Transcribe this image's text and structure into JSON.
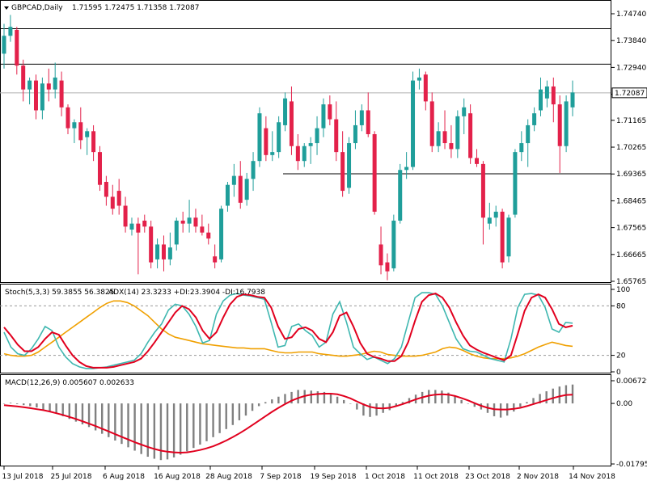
{
  "chart_data": [
    {
      "type": "candlestick",
      "symbol": "GBPCAD",
      "timeframe": "Daily",
      "header": {
        "symbol_label": "GBPCAD,Daily",
        "ohlc": "1.71595 1.72475 1.71358 1.72087"
      },
      "y_ticks": [
        "1.74740",
        "1.73840",
        "1.72940",
        "1.72040",
        "1.71165",
        "1.70265",
        "1.69365",
        "1.68465",
        "1.67565",
        "1.66665",
        "1.65765"
      ],
      "ylim": [
        1.65765,
        1.7474
      ],
      "current_price": "1.72087",
      "horizontal_lines": [
        1.7424,
        1.7305,
        1.6937
      ],
      "x_ticks": [
        "13 Jul 2018",
        "25 Jul 2018",
        "6 Aug 2018",
        "16 Aug 2018",
        "28 Aug 2018",
        "7 Sep 2018",
        "19 Sep 2018",
        "1 Oct 2018",
        "11 Oct 2018",
        "23 Oct 2018",
        "2 Nov 2018",
        "14 Nov 2018"
      ],
      "candles": [
        [
          1.734,
          1.744,
          1.729,
          1.74
        ],
        [
          1.74,
          1.747,
          1.738,
          1.743
        ],
        [
          1.742,
          1.743,
          1.727,
          1.73
        ],
        [
          1.73,
          1.732,
          1.718,
          1.722
        ],
        [
          1.722,
          1.726,
          1.717,
          1.725
        ],
        [
          1.725,
          1.727,
          1.712,
          1.715
        ],
        [
          1.715,
          1.726,
          1.712,
          1.724
        ],
        [
          1.724,
          1.729,
          1.718,
          1.722
        ],
        [
          1.722,
          1.731,
          1.719,
          1.726
        ],
        [
          1.725,
          1.728,
          1.713,
          1.716
        ],
        [
          1.716,
          1.717,
          1.707,
          1.709
        ],
        [
          1.709,
          1.712,
          1.704,
          1.711
        ],
        [
          1.711,
          1.716,
          1.702,
          1.705
        ],
        [
          1.706,
          1.709,
          1.7,
          1.708
        ],
        [
          1.708,
          1.71,
          1.698,
          1.701
        ],
        [
          1.701,
          1.703,
          1.688,
          1.69
        ],
        [
          1.691,
          1.693,
          1.683,
          1.686
        ],
        [
          1.686,
          1.69,
          1.68,
          1.682
        ],
        [
          1.688,
          1.692,
          1.68,
          1.683
        ],
        [
          1.683,
          1.686,
          1.674,
          1.676
        ],
        [
          1.675,
          1.679,
          1.673,
          1.677
        ],
        [
          1.677,
          1.679,
          1.66,
          1.674
        ],
        [
          1.678,
          1.68,
          1.674,
          1.676
        ],
        [
          1.676,
          1.678,
          1.662,
          1.664
        ],
        [
          1.665,
          1.672,
          1.662,
          1.67
        ],
        [
          1.67,
          1.673,
          1.661,
          1.665
        ],
        [
          1.665,
          1.674,
          1.663,
          1.669
        ],
        [
          1.67,
          1.679,
          1.668,
          1.678
        ],
        [
          1.678,
          1.681,
          1.674,
          1.677
        ],
        [
          1.677,
          1.685,
          1.674,
          1.679
        ],
        [
          1.679,
          1.682,
          1.674,
          1.676
        ],
        [
          1.676,
          1.68,
          1.673,
          1.674
        ],
        [
          1.674,
          1.677,
          1.67,
          1.672
        ],
        [
          1.666,
          1.67,
          1.662,
          1.664
        ],
        [
          1.665,
          1.683,
          1.664,
          1.682
        ],
        [
          1.683,
          1.691,
          1.681,
          1.69
        ],
        [
          1.69,
          1.697,
          1.686,
          1.693
        ],
        [
          1.693,
          1.698,
          1.682,
          1.684
        ],
        [
          1.685,
          1.694,
          1.683,
          1.692
        ],
        [
          1.692,
          1.701,
          1.688,
          1.698
        ],
        [
          1.698,
          1.716,
          1.696,
          1.714
        ],
        [
          1.709,
          1.713,
          1.698,
          1.7
        ],
        [
          1.7,
          1.708,
          1.698,
          1.701
        ],
        [
          1.701,
          1.713,
          1.699,
          1.711
        ],
        [
          1.71,
          1.721,
          1.708,
          1.719
        ],
        [
          1.718,
          1.723,
          1.7,
          1.703
        ],
        [
          1.703,
          1.707,
          1.695,
          1.698
        ],
        [
          1.698,
          1.704,
          1.696,
          1.703
        ],
        [
          1.703,
          1.706,
          1.697,
          1.704
        ],
        [
          1.704,
          1.713,
          1.7,
          1.709
        ],
        [
          1.709,
          1.719,
          1.706,
          1.717
        ],
        [
          1.717,
          1.72,
          1.71,
          1.712
        ],
        [
          1.712,
          1.718,
          1.698,
          1.701
        ],
        [
          1.701,
          1.708,
          1.686,
          1.688
        ],
        [
          1.689,
          1.706,
          1.687,
          1.704
        ],
        [
          1.704,
          1.715,
          1.702,
          1.71
        ],
        [
          1.71,
          1.717,
          1.708,
          1.715
        ],
        [
          1.715,
          1.721,
          1.706,
          1.707
        ],
        [
          1.707,
          1.708,
          1.68,
          1.681
        ],
        [
          1.67,
          1.676,
          1.66,
          1.663
        ],
        [
          1.664,
          1.667,
          1.658,
          1.661
        ],
        [
          1.662,
          1.68,
          1.661,
          1.678
        ],
        [
          1.678,
          1.697,
          1.677,
          1.695
        ],
        [
          1.695,
          1.701,
          1.692,
          1.696
        ],
        [
          1.696,
          1.728,
          1.695,
          1.725
        ],
        [
          1.725,
          1.729,
          1.722,
          1.726
        ],
        [
          1.727,
          1.728,
          1.715,
          1.718
        ],
        [
          1.718,
          1.721,
          1.701,
          1.703
        ],
        [
          1.703,
          1.711,
          1.701,
          1.708
        ],
        [
          1.708,
          1.715,
          1.702,
          1.704
        ],
        [
          1.704,
          1.71,
          1.699,
          1.702
        ],
        [
          1.702,
          1.715,
          1.699,
          1.713
        ],
        [
          1.713,
          1.719,
          1.707,
          1.716
        ],
        [
          1.714,
          1.717,
          1.697,
          1.699
        ],
        [
          1.699,
          1.702,
          1.696,
          1.697
        ],
        [
          1.697,
          1.698,
          1.67,
          1.679
        ],
        [
          1.677,
          1.684,
          1.675,
          1.679
        ],
        [
          1.679,
          1.683,
          1.676,
          1.681
        ],
        [
          1.681,
          1.682,
          1.662,
          1.664
        ],
        [
          1.666,
          1.68,
          1.664,
          1.679
        ],
        [
          1.68,
          1.702,
          1.679,
          1.701
        ],
        [
          1.701,
          1.708,
          1.698,
          1.704
        ],
        [
          1.704,
          1.712,
          1.696,
          1.71
        ],
        [
          1.71,
          1.716,
          1.708,
          1.714
        ],
        [
          1.715,
          1.726,
          1.713,
          1.722
        ],
        [
          1.719,
          1.725,
          1.716,
          1.723
        ],
        [
          1.723,
          1.726,
          1.711,
          1.717
        ],
        [
          1.717,
          1.72,
          1.694,
          1.703
        ],
        [
          1.703,
          1.72,
          1.701,
          1.718
        ],
        [
          1.716,
          1.725,
          1.713,
          1.721
        ]
      ]
    },
    {
      "type": "line",
      "indicator": "Stochastic",
      "header": "Stoch(5,3,3) 59.3855 56.3825",
      "adx_header": "ADX(14) 23.3233 +DI:23.3904 -DI:16.7938",
      "y_ticks": [
        "100",
        "80",
        "20",
        "0"
      ],
      "ylim": [
        0,
        100
      ],
      "levels": [
        80,
        20
      ],
      "series": [
        {
          "name": "Main",
          "color": "#3fb7b0",
          "values": [
            48,
            30,
            22,
            20,
            28,
            40,
            55,
            50,
            30,
            18,
            10,
            6,
            4,
            4,
            5,
            6,
            8,
            10,
            12,
            14,
            22,
            36,
            48,
            58,
            75,
            82,
            80,
            70,
            55,
            35,
            38,
            70,
            86,
            93,
            95,
            93,
            92,
            90,
            88,
            60,
            30,
            32,
            55,
            58,
            50,
            44,
            30,
            36,
            70,
            85,
            60,
            30,
            22,
            15,
            18,
            14,
            10,
            16,
            30,
            60,
            90,
            96,
            96,
            94,
            80,
            60,
            40,
            28,
            25,
            24,
            20,
            16,
            14,
            12,
            40,
            78,
            94,
            95,
            93,
            78,
            52,
            48,
            60,
            59
          ]
        },
        {
          "name": "Signal",
          "color": "#e1001e",
          "values": [
            54,
            44,
            33,
            25,
            25,
            30,
            40,
            48,
            45,
            32,
            20,
            12,
            7,
            5,
            5,
            5,
            6,
            8,
            10,
            12,
            16,
            25,
            36,
            48,
            60,
            72,
            80,
            76,
            66,
            50,
            40,
            48,
            66,
            82,
            91,
            94,
            93,
            91,
            90,
            78,
            55,
            40,
            42,
            52,
            54,
            50,
            40,
            36,
            48,
            68,
            72,
            55,
            35,
            22,
            18,
            16,
            13,
            13,
            19,
            36,
            62,
            85,
            93,
            95,
            90,
            78,
            60,
            44,
            32,
            27,
            23,
            20,
            17,
            14,
            20,
            46,
            74,
            90,
            94,
            90,
            76,
            58,
            54,
            56
          ]
        },
        {
          "name": "ADX",
          "color": "#f0a000",
          "values": [
            22,
            20,
            19,
            19,
            20,
            24,
            30,
            36,
            42,
            48,
            54,
            60,
            66,
            72,
            78,
            83,
            86,
            86,
            84,
            80,
            74,
            68,
            60,
            52,
            46,
            42,
            40,
            38,
            36,
            34,
            33,
            32,
            31,
            30,
            29,
            29,
            28,
            28,
            28,
            26,
            24,
            23,
            23,
            24,
            24,
            24,
            22,
            21,
            20,
            19,
            19,
            20,
            21,
            23,
            25,
            24,
            21,
            20,
            19,
            19,
            19,
            20,
            22,
            24,
            28,
            30,
            29,
            26,
            22,
            19,
            17,
            16,
            16,
            16,
            17,
            19,
            22,
            26,
            30,
            33,
            36,
            34,
            32,
            31
          ]
        }
      ]
    },
    {
      "type": "bar",
      "indicator": "MACD",
      "header": "MACD(12,26,9) 0.005607 0.002633",
      "y_ticks": [
        "0.006729",
        "0.00",
        "-0.017951"
      ],
      "ylim": [
        -0.017951,
        0.006729
      ],
      "series": [
        {
          "name": "Histogram",
          "color": "#808080",
          "values": [
            0.0,
            0.0002,
            -0.0002,
            -0.0005,
            -0.0008,
            -0.0012,
            -0.0018,
            -0.0024,
            -0.003,
            -0.0038,
            -0.0046,
            -0.0054,
            -0.0062,
            -0.007,
            -0.008,
            -0.009,
            -0.01,
            -0.011,
            -0.012,
            -0.013,
            -0.014,
            -0.015,
            -0.0158,
            -0.0164,
            -0.0168,
            -0.0166,
            -0.016,
            -0.0152,
            -0.0142,
            -0.0132,
            -0.0122,
            -0.0112,
            -0.01,
            -0.0088,
            -0.0076,
            -0.0064,
            -0.005,
            -0.0036,
            -0.0022,
            -0.0008,
            0.0004,
            0.0012,
            0.002,
            0.0028,
            0.0034,
            0.004,
            0.004,
            0.0038,
            0.0036,
            0.0034,
            0.003,
            0.002,
            0.001,
            0.0,
            -0.0018,
            -0.0036,
            -0.004,
            -0.0036,
            -0.0028,
            -0.002,
            -0.0008,
            0.0004,
            0.0016,
            0.0026,
            0.0034,
            0.004,
            0.004,
            0.0038,
            0.0032,
            0.0022,
            0.001,
            0.0,
            -0.001,
            -0.0018,
            -0.0028,
            -0.0038,
            -0.0042,
            -0.0036,
            -0.0024,
            -0.001,
            0.0004,
            0.0016,
            0.0028,
            0.0036,
            0.0044,
            0.005,
            0.0054,
            0.0056
          ]
        },
        {
          "name": "Signal",
          "color": "#e1001e",
          "values": [
            -0.0005,
            -0.0007,
            -0.0009,
            -0.0011,
            -0.0014,
            -0.0017,
            -0.002,
            -0.0024,
            -0.0029,
            -0.0034,
            -0.004,
            -0.0046,
            -0.0053,
            -0.006,
            -0.0067,
            -0.0075,
            -0.0083,
            -0.0091,
            -0.0099,
            -0.0107,
            -0.0115,
            -0.0122,
            -0.0129,
            -0.0135,
            -0.014,
            -0.0143,
            -0.0145,
            -0.0146,
            -0.0145,
            -0.0142,
            -0.0138,
            -0.0133,
            -0.0127,
            -0.0119,
            -0.011,
            -0.01,
            -0.0089,
            -0.0077,
            -0.0064,
            -0.0051,
            -0.0038,
            -0.0025,
            -0.0013,
            -0.0002,
            0.0008,
            0.0016,
            0.0022,
            0.0026,
            0.0028,
            0.0029,
            0.0029,
            0.0027,
            0.0022,
            0.0015,
            0.0006,
            -0.0003,
            -0.001,
            -0.0014,
            -0.0015,
            -0.0013,
            -0.0008,
            -0.0002,
            0.0005,
            0.0012,
            0.0018,
            0.0023,
            0.0026,
            0.0027,
            0.0026,
            0.0022,
            0.0016,
            0.0009,
            0.0001,
            -0.0007,
            -0.0013,
            -0.0017,
            -0.0018,
            -0.0018,
            -0.0016,
            -0.0013,
            -0.0008,
            -0.0002,
            0.0004,
            0.001,
            0.0016,
            0.0021,
            0.0025,
            0.0026
          ]
        }
      ]
    }
  ]
}
